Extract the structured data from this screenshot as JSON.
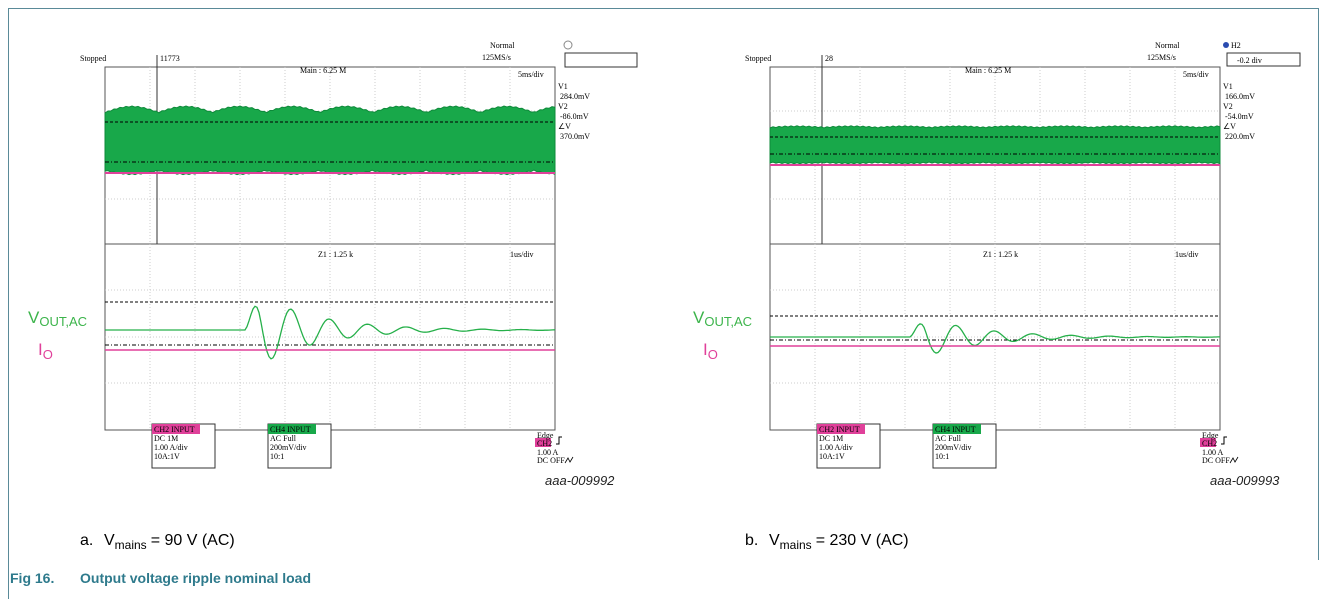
{
  "panels": [
    {
      "status": "Stopped",
      "trigger_count": "11773",
      "mode": "Normal",
      "sample_rate": "125MS/s",
      "zoom_main": "Main : 6.25 M",
      "timebase": "5ms/div",
      "cursor_readouts": [
        "V1",
        "284.0mV",
        "V2",
        "-86.0mV",
        "∠V",
        "370.0mV"
      ],
      "zoom_info": "Z1 : 1.25 k",
      "zoom_timebase": "1us/div",
      "vout_label": {
        "main": "V",
        "sub": "OUT,AC"
      },
      "io_label": {
        "main": "I",
        "sub": "O"
      },
      "ch2_box": [
        "CH2 INPUT",
        "DC 1M",
        "1.00 A/div",
        "10A:1V"
      ],
      "ch4_box": [
        "CH4 INPUT",
        "AC Full",
        "200mV/div",
        "10:1"
      ],
      "trigger_box": [
        "Edge",
        "CH2",
        "1.00 A",
        "DC OFF"
      ],
      "code": "aaa-009992",
      "caption": {
        "letter": "a.",
        "main": "V",
        "sub": "mains",
        "rest": "= 90 V (AC)"
      }
    },
    {
      "status": "Stopped",
      "trigger_count": "28",
      "mode": "Normal",
      "sample_rate": "125MS/s",
      "zoom_main": "Main : 6.25 M",
      "timebase": "5ms/div",
      "position_label": "H2",
      "position_value": "-0.2 div",
      "cursor_readouts": [
        "V1",
        "166.0mV",
        "V2",
        "-54.0mV",
        "∠V",
        "220.0mV"
      ],
      "zoom_info": "Z1 : 1.25 k",
      "zoom_timebase": "1us/div",
      "vout_label": {
        "main": "V",
        "sub": "OUT,AC"
      },
      "io_label": {
        "main": "I",
        "sub": "O"
      },
      "ch2_box": [
        "CH2 INPUT",
        "DC 1M",
        "1.00 A/div",
        "10A:1V"
      ],
      "ch4_box": [
        "CH4 INPUT",
        "AC Full",
        "200mV/div",
        "10:1"
      ],
      "trigger_box": [
        "Edge",
        "CH2",
        "1.00 A",
        "DC OFF"
      ],
      "code": "aaa-009993",
      "caption": {
        "letter": "b.",
        "main": "V",
        "sub": "mains",
        "rest": "= 230 V (AC)"
      }
    }
  ],
  "figure": {
    "number": "Fig 16.",
    "title": "Output voltage ripple nominal load"
  }
}
